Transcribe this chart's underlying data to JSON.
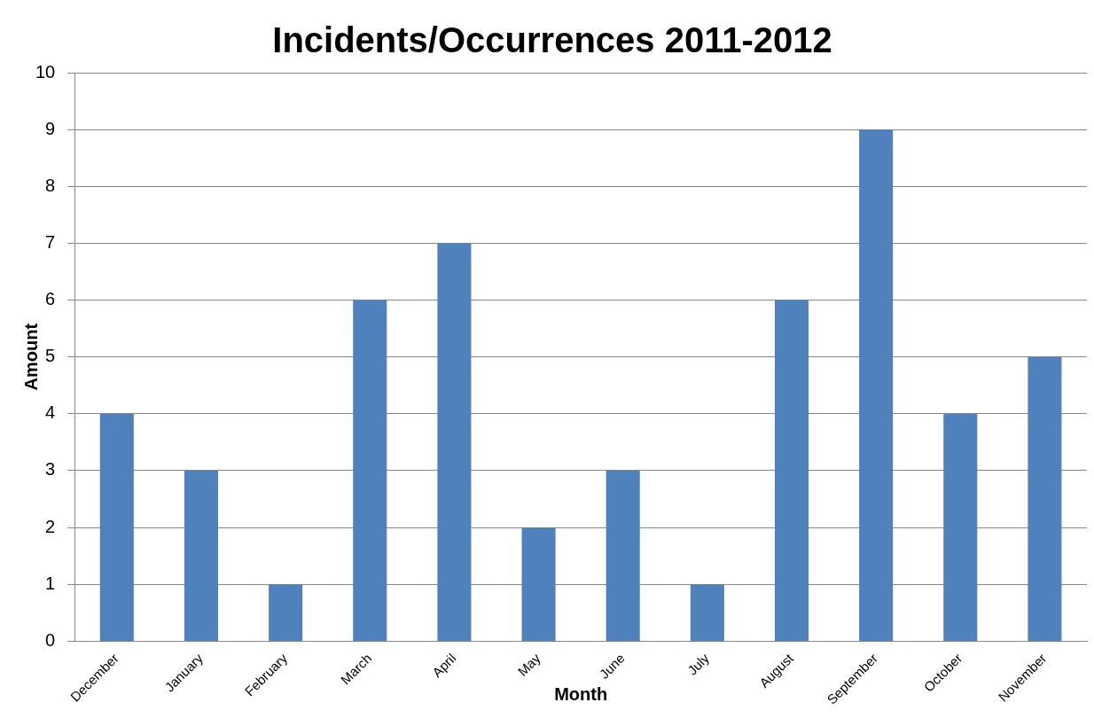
{
  "chart_data": {
    "type": "bar",
    "title": "Incidents/Occurrences 2011-2012",
    "xlabel": "Month",
    "ylabel": "Amount",
    "categories": [
      "December",
      "January",
      "February",
      "March",
      "April",
      "May",
      "June",
      "July",
      "August",
      "September",
      "October",
      "November"
    ],
    "values": [
      4,
      3,
      1,
      6,
      7,
      2,
      3,
      1,
      6,
      9,
      4,
      5
    ],
    "color": "#4f81bd",
    "ylim": [
      0,
      10
    ],
    "yticks": [
      0,
      1,
      2,
      3,
      4,
      5,
      6,
      7,
      8,
      9,
      10
    ],
    "grid": "y",
    "legend": false
  }
}
